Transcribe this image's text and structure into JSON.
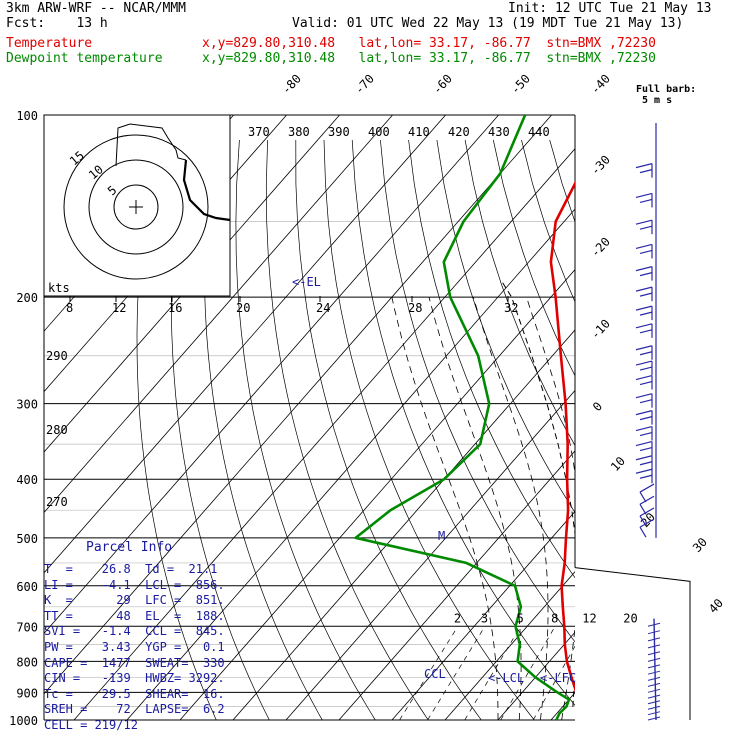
{
  "header": {
    "line1_left": "3km ARW-WRF -- NCAR/MMM",
    "line1_right": "Init: 12 UTC Tue 21 May 13",
    "line2_left": "Fcst:    13 h",
    "line2_right": "Valid: 01 UTC Wed 22 May 13 (19 MDT Tue 21 May 13)",
    "temp_label": "Temperature",
    "temp_info": "x,y=829.80,310.48   lat,lon= 33.17, -86.77  stn=BMX ,72230",
    "dew_label": "Dewpoint temperature",
    "dew_info": "x,y=829.80,310.48   lat,lon= 33.17, -86.77  stn=BMX ,72230"
  },
  "barb_legend": {
    "line1": "Full barb:",
    "line2": "5 m s"
  },
  "colors": {
    "temperature": "#e00000",
    "dewpoint": "#008a00",
    "info": "#1a1aa0",
    "barbs": "#2a2aa8"
  },
  "chart_data": {
    "type": "line",
    "title": "",
    "y_axis": "pressure (hPa), log scale",
    "pressure_labels": [
      "100",
      "200",
      "300",
      "400",
      "500",
      "600",
      "700",
      "800",
      "900",
      "1000"
    ],
    "pressure_levels": [
      100,
      200,
      300,
      400,
      500,
      600,
      700,
      800,
      900,
      1000
    ],
    "isotherm_labels": [
      "-80",
      "-70",
      "-60",
      "-50",
      "-40",
      "-30",
      "-20",
      "-10",
      "0",
      "10",
      "20",
      "30",
      "40"
    ],
    "theta_labels": [
      "370",
      "380",
      "390",
      "400",
      "410",
      "420",
      "430",
      "440"
    ],
    "left_theta_labels": [
      "290",
      "280",
      "270"
    ],
    "speed_axis": {
      "unit": "kts",
      "ticks": [
        "8",
        "12",
        "16",
        "20",
        "24",
        "28",
        "32"
      ]
    },
    "mixing_ratio_labels": [
      "2",
      "3",
      "5",
      "8",
      "12",
      "20"
    ],
    "annotations": {
      "el": "<-EL",
      "lcl": "<-LCL",
      "lfc": "<-LFC",
      "ccl": "CCL",
      "m_marker": "M"
    },
    "hodograph": {
      "ring_labels": [
        "5",
        "10",
        "15"
      ]
    },
    "series": [
      {
        "name": "Temperature",
        "color": "#e00000",
        "points": [
          [
            1000,
            27
          ],
          [
            975,
            25.2
          ],
          [
            950,
            23.2
          ],
          [
            925,
            21.4
          ],
          [
            900,
            20.2
          ],
          [
            850,
            16.8
          ],
          [
            800,
            13.3
          ],
          [
            750,
            10.1
          ],
          [
            700,
            7
          ],
          [
            650,
            3.5
          ],
          [
            600,
            -0.2
          ],
          [
            550,
            -3.4
          ],
          [
            500,
            -7.3
          ],
          [
            450,
            -11.5
          ],
          [
            400,
            -16.8
          ],
          [
            350,
            -22.5
          ],
          [
            300,
            -29.6
          ],
          [
            250,
            -38.4
          ],
          [
            200,
            -49.1
          ],
          [
            175,
            -55.8
          ],
          [
            150,
            -61.6
          ],
          [
            125,
            -64.9
          ],
          [
            100,
            -69.4
          ]
        ]
      },
      {
        "name": "Dewpoint temperature",
        "color": "#008a00",
        "points": [
          [
            1000,
            21
          ],
          [
            975,
            20.5
          ],
          [
            950,
            20.7
          ],
          [
            925,
            20
          ],
          [
            900,
            16.6
          ],
          [
            850,
            10
          ],
          [
            800,
            4
          ],
          [
            750,
            1.6
          ],
          [
            700,
            -2.2
          ],
          [
            650,
            -4.4
          ],
          [
            600,
            -9
          ],
          [
            550,
            -22
          ],
          [
            500,
            -47
          ],
          [
            450,
            -45
          ],
          [
            400,
            -40
          ],
          [
            350,
            -39
          ],
          [
            300,
            -44
          ],
          [
            250,
            -54
          ],
          [
            200,
            -69
          ],
          [
            175,
            -76
          ],
          [
            150,
            -79
          ],
          [
            125,
            -80
          ],
          [
            100,
            -85
          ]
        ]
      }
    ],
    "parcel": {
      "points": [
        [
          1000,
          27
        ],
        [
          950,
          21.9
        ],
        [
          900,
          19.7
        ],
        [
          850,
          17.6
        ],
        [
          800,
          15.2
        ],
        [
          750,
          12.7
        ],
        [
          700,
          9.8
        ],
        [
          650,
          6.6
        ],
        [
          600,
          3.1
        ],
        [
          550,
          -0.9
        ],
        [
          500,
          -5.5
        ],
        [
          450,
          -10.8
        ],
        [
          400,
          -17
        ],
        [
          350,
          -24.3
        ],
        [
          300,
          -33.1
        ],
        [
          250,
          -43.9
        ],
        [
          200,
          -57.4
        ],
        [
          188,
          -62
        ]
      ]
    }
  },
  "parcel_info": {
    "title": "Parcel Info",
    "rows": [
      "T  =    26.8  Td =  21.1",
      "LI =    -4.1  LCL =  856.",
      "K  =      29  LFC =  851.",
      "TT =      48  EL  =  188.",
      "SVI =   -1.4  CCL =  845.",
      "PW =    3.43  YGP =   0.1",
      "CAPE =  1477  SWEAT=  330",
      "CIN =   -139  HWBZ= 3292.",
      "Tc =    29.5  SHEAR=  16.",
      "SREH =    72  LAPSE=  6.2",
      "CELL = 219/12"
    ]
  }
}
